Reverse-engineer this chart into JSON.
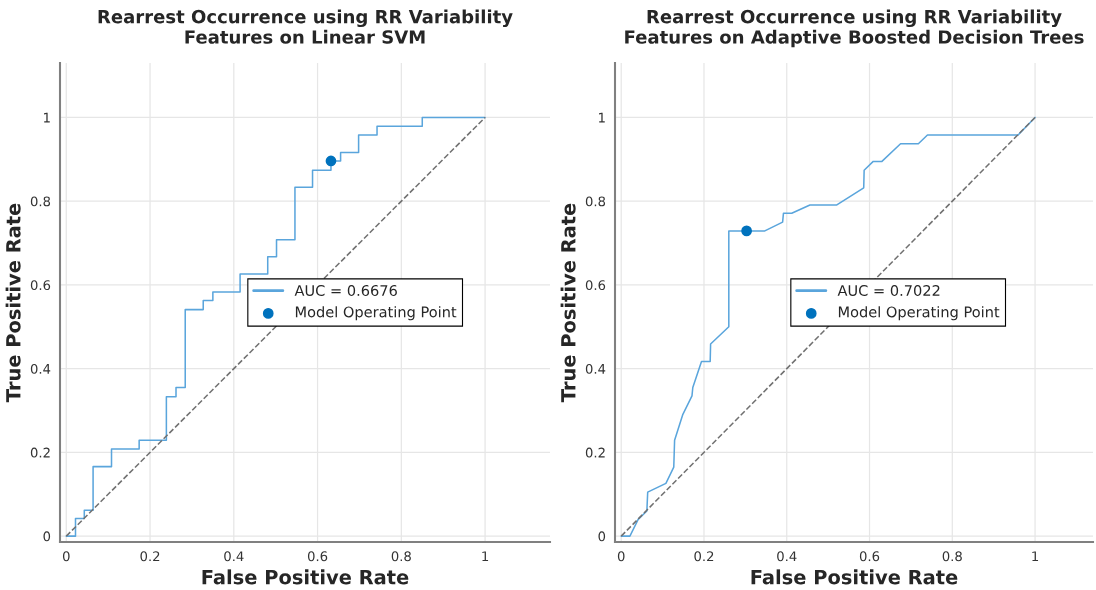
{
  "chart_data": [
    {
      "type": "line",
      "title": "Rearrest Occurrence using RR Variability\nFeatures on Linear SVM",
      "xlabel": "False Positive Rate",
      "ylabel": "True Positive Rate",
      "xlim": [
        -0.015,
        1.155
      ],
      "ylim": [
        -0.014,
        1.13
      ],
      "xticks": [
        0,
        0.2,
        0.4,
        0.6,
        0.8,
        1
      ],
      "yticks": [
        0,
        0.2,
        0.4,
        0.6,
        0.8,
        1
      ],
      "grid": true,
      "legend": "right",
      "series": [
        {
          "name": "AUC = 0.6676",
          "color": "#5aa5dc",
          "x": [
            0,
            0.022,
            0.022,
            0.043,
            0.043,
            0.064,
            0.064,
            0.108,
            0.108,
            0.174,
            0.174,
            0.239,
            0.239,
            0.262,
            0.262,
            0.284,
            0.284,
            0.327,
            0.327,
            0.35,
            0.35,
            0.415,
            0.415,
            0.481,
            0.481,
            0.502,
            0.502,
            0.546,
            0.546,
            0.588,
            0.588,
            0.632,
            0.632,
            0.655,
            0.655,
            0.698,
            0.698,
            0.742,
            0.742,
            0.85,
            0.85,
            1
          ],
          "values": [
            0,
            0,
            0.042,
            0.042,
            0.062,
            0.062,
            0.166,
            0.166,
            0.208,
            0.208,
            0.229,
            0.229,
            0.333,
            0.333,
            0.355,
            0.355,
            0.541,
            0.541,
            0.563,
            0.563,
            0.583,
            0.583,
            0.626,
            0.626,
            0.667,
            0.667,
            0.708,
            0.708,
            0.833,
            0.833,
            0.874,
            0.874,
            0.896,
            0.896,
            0.916,
            0.916,
            0.958,
            0.958,
            0.979,
            0.979,
            1,
            1
          ]
        },
        {
          "name": "Model Operating Point",
          "type": "scatter",
          "marker": "circle",
          "color": "#0072bd",
          "x": [
            0.632
          ],
          "values": [
            0.896
          ]
        },
        {
          "type": "line",
          "line_style": "dashed",
          "color": "#707070",
          "x": [
            0,
            1
          ],
          "values": [
            0,
            1
          ]
        }
      ]
    },
    {
      "type": "line",
      "title": "Rearrest Occurrence using RR Variability\nFeatures on Adaptive Boosted Decision Trees",
      "xlabel": "False Positive Rate",
      "ylabel": "True Positive Rate",
      "xlim": [
        -0.015,
        1.14
      ],
      "ylim": [
        -0.014,
        1.13
      ],
      "xticks": [
        0,
        0.2,
        0.4,
        0.6,
        0.8,
        1
      ],
      "yticks": [
        0,
        0.2,
        0.4,
        0.6,
        0.8,
        1
      ],
      "grid": true,
      "legend": "right",
      "series": [
        {
          "name": "AUC = 0.7022",
          "color": "#5aa5dc",
          "x": [
            0,
            0.021,
            0.041,
            0.062,
            0.064,
            0.108,
            0.127,
            0.129,
            0.149,
            0.171,
            0.173,
            0.194,
            0.215,
            0.216,
            0.26,
            0.26,
            0.303,
            0.347,
            0.39,
            0.392,
            0.412,
            0.456,
            0.521,
            0.586,
            0.587,
            0.609,
            0.63,
            0.675,
            0.718,
            0.74,
            0.959,
            1
          ],
          "values": [
            0,
            0,
            0.04,
            0.06,
            0.105,
            0.126,
            0.165,
            0.229,
            0.291,
            0.335,
            0.355,
            0.417,
            0.417,
            0.459,
            0.5,
            0.729,
            0.729,
            0.729,
            0.75,
            0.771,
            0.771,
            0.791,
            0.791,
            0.832,
            0.874,
            0.895,
            0.895,
            0.937,
            0.937,
            0.958,
            0.958,
            1
          ]
        },
        {
          "name": "Model Operating Point",
          "type": "scatter",
          "marker": "circle",
          "color": "#0072bd",
          "x": [
            0.303
          ],
          "values": [
            0.729
          ]
        },
        {
          "type": "line",
          "line_style": "dashed",
          "color": "#707070",
          "x": [
            0,
            1
          ],
          "values": [
            0,
            1
          ]
        }
      ]
    }
  ]
}
